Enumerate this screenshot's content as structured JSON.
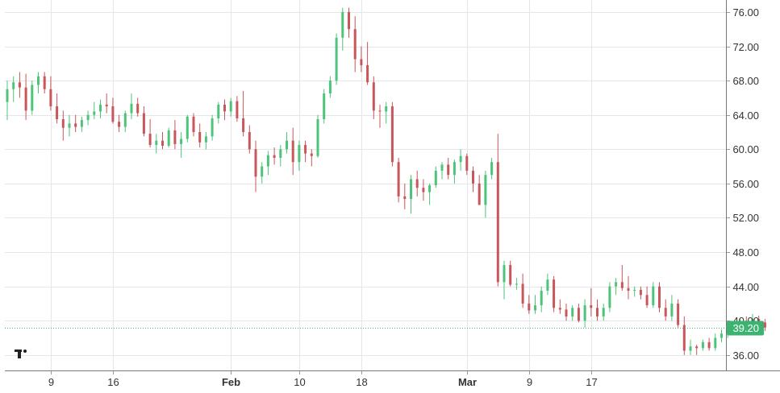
{
  "chart_data": {
    "type": "candlestick",
    "colors": {
      "up": "#4ec47a",
      "down": "#c8565a",
      "grid": "#e4e6ea",
      "axis_text": "#333333",
      "last_price": "#3cb371",
      "watermark": "#222222"
    },
    "y_axis": {
      "position": "right",
      "ticks": [
        "76.00",
        "72.00",
        "68.00",
        "64.00",
        "60.00",
        "56.00",
        "52.00",
        "48.00",
        "44.00",
        "40.00",
        "36.00"
      ],
      "ylim": [
        34.2,
        77.4
      ]
    },
    "x_axis": {
      "labels": [
        {
          "text": "9",
          "bar_index": 7,
          "bold": false
        },
        {
          "text": "16",
          "bar_index": 17,
          "bold": false
        },
        {
          "text": "Feb",
          "bar_index": 36,
          "bold": true
        },
        {
          "text": "10",
          "bar_index": 47,
          "bold": false
        },
        {
          "text": "18",
          "bar_index": 57,
          "bold": false
        },
        {
          "text": "Mar",
          "bar_index": 74,
          "bold": true
        },
        {
          "text": "9",
          "bar_index": 84,
          "bold": false
        },
        {
          "text": "17",
          "bar_index": 94,
          "bold": false
        }
      ]
    },
    "last_price": {
      "label": "39.20",
      "value": 39.2
    },
    "candles": [
      [
        65.5,
        68.0,
        63.4,
        67.0
      ],
      [
        67.0,
        68.5,
        65.5,
        67.8
      ],
      [
        67.8,
        69.0,
        66.0,
        67.2
      ],
      [
        67.2,
        68.8,
        63.4,
        64.5
      ],
      [
        64.5,
        68.0,
        64.0,
        67.5
      ],
      [
        67.5,
        69.0,
        66.5,
        68.5
      ],
      [
        68.5,
        69.0,
        66.5,
        67.0
      ],
      [
        67.0,
        68.5,
        64.5,
        65.0
      ],
      [
        65.0,
        66.5,
        63.0,
        63.5
      ],
      [
        63.5,
        64.5,
        61.0,
        62.5
      ],
      [
        62.5,
        64.0,
        61.5,
        63.0
      ],
      [
        63.0,
        64.0,
        62.0,
        62.6
      ],
      [
        62.6,
        63.8,
        62.0,
        63.4
      ],
      [
        63.4,
        64.5,
        62.8,
        64.0
      ],
      [
        64.0,
        65.5,
        63.5,
        64.4
      ],
      [
        64.4,
        65.8,
        63.6,
        65.2
      ],
      [
        65.2,
        66.5,
        64.2,
        65.0
      ],
      [
        65.0,
        66.0,
        63.0,
        63.2
      ],
      [
        63.2,
        64.0,
        62.0,
        62.6
      ],
      [
        62.6,
        64.5,
        62.0,
        64.2
      ],
      [
        64.2,
        66.5,
        63.5,
        65.3
      ],
      [
        65.3,
        66.0,
        63.8,
        64.2
      ],
      [
        64.2,
        65.0,
        61.5,
        61.8
      ],
      [
        61.8,
        63.5,
        60.2,
        60.5
      ],
      [
        60.5,
        61.8,
        59.5,
        61.0
      ],
      [
        61.0,
        62.0,
        60.0,
        60.4
      ],
      [
        60.4,
        62.5,
        60.2,
        62.2
      ],
      [
        62.2,
        63.4,
        60.0,
        60.6
      ],
      [
        60.6,
        62.0,
        59.0,
        61.2
      ],
      [
        61.2,
        64.0,
        60.8,
        63.8
      ],
      [
        63.8,
        64.2,
        61.5,
        62.0
      ],
      [
        62.0,
        63.0,
        60.2,
        60.8
      ],
      [
        60.8,
        62.0,
        60.0,
        61.5
      ],
      [
        61.5,
        64.0,
        61.0,
        63.6
      ],
      [
        63.6,
        65.5,
        63.0,
        65.2
      ],
      [
        65.2,
        65.8,
        63.4,
        64.4
      ],
      [
        64.4,
        66.0,
        63.8,
        65.6
      ],
      [
        65.6,
        66.2,
        63.2,
        63.6
      ],
      [
        63.6,
        66.8,
        61.5,
        62.0
      ],
      [
        62.0,
        62.8,
        59.5,
        60.0
      ],
      [
        60.0,
        61.0,
        55.0,
        56.8
      ],
      [
        56.8,
        58.5,
        56.0,
        58.0
      ],
      [
        58.0,
        59.8,
        57.0,
        59.3
      ],
      [
        59.3,
        60.2,
        58.2,
        59.0
      ],
      [
        59.0,
        60.5,
        58.0,
        60.0
      ],
      [
        60.0,
        62.0,
        59.5,
        61.0
      ],
      [
        61.0,
        62.5,
        57.0,
        58.5
      ],
      [
        58.5,
        61.0,
        57.5,
        60.5
      ],
      [
        60.5,
        61.0,
        58.5,
        59.5
      ],
      [
        59.5,
        60.0,
        58.0,
        59.2
      ],
      [
        59.2,
        64.0,
        59.0,
        63.5
      ],
      [
        63.5,
        67.0,
        63.0,
        66.5
      ],
      [
        66.5,
        68.5,
        66.0,
        68.0
      ],
      [
        68.0,
        73.5,
        67.5,
        73.0
      ],
      [
        73.0,
        76.5,
        71.5,
        76.0
      ],
      [
        76.0,
        76.5,
        73.0,
        74.0
      ],
      [
        74.0,
        75.5,
        69.0,
        70.5
      ],
      [
        70.5,
        72.0,
        69.0,
        69.8
      ],
      [
        69.8,
        72.5,
        67.5,
        67.8
      ],
      [
        67.8,
        68.5,
        63.5,
        64.5
      ],
      [
        64.5,
        65.2,
        62.5,
        64.4
      ],
      [
        64.4,
        65.5,
        63.0,
        65.0
      ],
      [
        65.0,
        65.5,
        58.0,
        58.5
      ],
      [
        58.5,
        59.0,
        53.8,
        54.5
      ],
      [
        54.5,
        56.0,
        53.0,
        54.2
      ],
      [
        54.2,
        57.0,
        52.5,
        56.5
      ],
      [
        56.5,
        57.5,
        54.5,
        55.5
      ],
      [
        55.5,
        56.5,
        54.0,
        55.0
      ],
      [
        55.0,
        56.0,
        53.5,
        55.8
      ],
      [
        55.8,
        58.0,
        55.5,
        57.5
      ],
      [
        57.5,
        58.5,
        56.5,
        58.2
      ],
      [
        58.2,
        59.0,
        56.5,
        57.0
      ],
      [
        57.0,
        58.8,
        56.0,
        58.5
      ],
      [
        58.5,
        60.0,
        57.5,
        59.2
      ],
      [
        59.2,
        59.5,
        57.0,
        57.5
      ],
      [
        57.5,
        58.0,
        55.0,
        56.0
      ],
      [
        56.0,
        57.0,
        53.5,
        53.5
      ],
      [
        53.5,
        57.5,
        52.0,
        57.0
      ],
      [
        57.0,
        59.0,
        56.5,
        58.5
      ],
      [
        58.5,
        61.8,
        44.0,
        44.5
      ],
      [
        44.5,
        47.0,
        42.5,
        46.5
      ],
      [
        46.5,
        47.0,
        44.0,
        44.2
      ],
      [
        44.2,
        45.0,
        43.6,
        44.3
      ],
      [
        44.3,
        45.5,
        41.5,
        42.0
      ],
      [
        42.0,
        43.0,
        40.8,
        41.2
      ],
      [
        41.2,
        43.0,
        40.8,
        41.8
      ],
      [
        41.8,
        44.0,
        41.0,
        43.5
      ],
      [
        43.5,
        45.5,
        43.0,
        44.8
      ],
      [
        44.8,
        45.2,
        41.0,
        41.5
      ],
      [
        41.5,
        42.5,
        40.8,
        41.3
      ],
      [
        41.3,
        42.0,
        40.0,
        40.5
      ],
      [
        40.5,
        41.8,
        40.0,
        41.5
      ],
      [
        41.5,
        42.0,
        39.8,
        40.0
      ],
      [
        40.0,
        42.5,
        39.2,
        41.8
      ],
      [
        41.8,
        43.8,
        40.5,
        41.5
      ],
      [
        41.5,
        42.5,
        40.0,
        40.5
      ],
      [
        40.5,
        42.0,
        40.0,
        41.5
      ],
      [
        41.5,
        44.5,
        41.0,
        44.0
      ],
      [
        44.0,
        45.0,
        43.0,
        44.5
      ],
      [
        44.5,
        46.5,
        43.5,
        43.8
      ],
      [
        43.8,
        45.2,
        42.5,
        43.5
      ],
      [
        43.5,
        44.0,
        42.8,
        43.6
      ],
      [
        43.6,
        44.0,
        42.5,
        43.0
      ],
      [
        43.0,
        44.0,
        41.5,
        41.8
      ],
      [
        41.8,
        44.5,
        41.5,
        44.0
      ],
      [
        44.0,
        44.5,
        41.0,
        41.5
      ],
      [
        41.5,
        42.5,
        40.0,
        40.5
      ],
      [
        40.5,
        43.0,
        40.0,
        42.0
      ],
      [
        42.0,
        42.5,
        39.2,
        39.5
      ],
      [
        39.5,
        40.5,
        36.0,
        36.5
      ],
      [
        36.5,
        37.8,
        36.0,
        37.0
      ],
      [
        37.0,
        37.2,
        36.0,
        36.8
      ],
      [
        36.8,
        37.8,
        36.5,
        37.5
      ],
      [
        37.5,
        38.0,
        36.5,
        36.8
      ],
      [
        36.8,
        38.5,
        36.5,
        38.0
      ],
      [
        38.0,
        39.0,
        37.5,
        38.5
      ],
      [
        38.5,
        39.5,
        38.0,
        39.2
      ],
      [
        39.2,
        39.8,
        38.5,
        39.0
      ],
      [
        39.0,
        40.2,
        38.8,
        40.0
      ],
      [
        40.0,
        40.5,
        39.2,
        39.5
      ],
      [
        39.5,
        40.8,
        39.0,
        40.2
      ],
      [
        40.2,
        40.6,
        39.4,
        39.8
      ],
      [
        39.8,
        40.2,
        38.8,
        39.2
      ]
    ]
  }
}
